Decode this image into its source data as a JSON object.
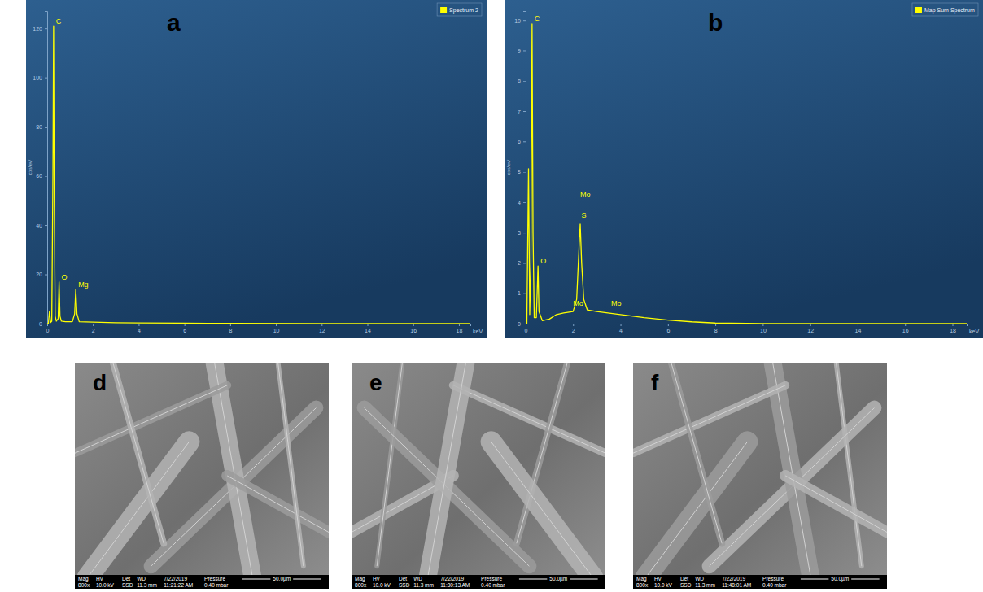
{
  "chart_data": [
    {
      "type": "line",
      "panel_label": "a",
      "x_label": "keV",
      "y_label": "cps/eV",
      "xlim": [
        0,
        18.5
      ],
      "xticks": [
        0,
        2,
        4,
        6,
        8,
        10,
        12,
        14,
        16,
        18
      ],
      "ylim": [
        0,
        127
      ],
      "yticks": [
        0,
        20,
        40,
        60,
        80,
        100,
        120
      ],
      "grid": false,
      "legend": "top-right",
      "x": [
        0,
        0.05,
        0.1,
        0.15,
        0.2,
        0.25,
        0.28,
        0.31,
        0.35,
        0.4,
        0.48,
        0.52,
        0.56,
        0.62,
        0.8,
        1.1,
        1.2,
        1.25,
        1.3,
        1.4,
        2,
        3,
        4,
        6,
        8,
        12,
        18.5
      ],
      "series": [
        {
          "name": "Spectrum 2",
          "color": "#ffff00",
          "values": [
            0,
            0,
            5,
            0.5,
            1,
            60,
            121,
            50,
            3,
            1,
            2,
            17,
            3,
            1,
            0.8,
            0.8,
            4,
            14,
            4,
            0.8,
            0.6,
            0.4,
            0.3,
            0.2,
            0.1,
            0.05,
            0
          ]
        }
      ],
      "annotations": [
        {
          "text": "C",
          "x": 0.28,
          "y": 121
        },
        {
          "text": "O",
          "x": 0.52,
          "y": 17
        },
        {
          "text": "Mg",
          "x": 1.25,
          "y": 14
        }
      ]
    },
    {
      "type": "line",
      "panel_label": "b",
      "x_label": "keV",
      "y_label": "cps/eV",
      "xlim": [
        0,
        18.6
      ],
      "xticks": [
        0,
        2,
        4,
        6,
        8,
        10,
        12,
        14,
        16,
        18
      ],
      "ylim": [
        0,
        10.3
      ],
      "yticks": [
        0,
        1,
        2,
        3,
        4,
        5,
        6,
        7,
        8,
        9,
        10
      ],
      "grid": false,
      "legend": "top-right",
      "x": [
        0,
        0.05,
        0.12,
        0.17,
        0.22,
        0.27,
        0.31,
        0.36,
        0.45,
        0.52,
        0.56,
        0.7,
        1.0,
        1.3,
        1.6,
        2.0,
        2.15,
        2.25,
        2.3,
        2.36,
        2.45,
        2.6,
        3,
        4,
        5,
        6,
        7,
        8,
        10,
        18.6
      ],
      "series": [
        {
          "name": "Map Sum Spectrum",
          "color": "#ffff00",
          "values": [
            0,
            0,
            5.1,
            0.3,
            2,
            9.9,
            3,
            0.2,
            0.2,
            1.9,
            0.4,
            0.1,
            0.15,
            0.3,
            0.35,
            0.4,
            0.8,
            2.5,
            3.3,
            2,
            0.8,
            0.45,
            0.4,
            0.3,
            0.2,
            0.12,
            0.06,
            0.02,
            0,
            0
          ]
        }
      ],
      "annotations": [
        {
          "text": "C",
          "x": 0.27,
          "y": 9.9
        },
        {
          "text": "O",
          "x": 0.52,
          "y": 1.9
        },
        {
          "text": "Mo",
          "x": 2.2,
          "y": 4.1
        },
        {
          "text": "S",
          "x": 2.25,
          "y": 3.4
        },
        {
          "text": "Mo",
          "x": 1.9,
          "y": 0.5
        },
        {
          "text": "Mo",
          "x": 3.5,
          "y": 0.5
        }
      ]
    }
  ],
  "images": [
    {
      "label": "d",
      "header": [
        "Mag",
        "HV",
        "Det",
        "WD",
        "7/22/2019",
        "Pressure"
      ],
      "values": [
        "800x",
        "10.0 kV",
        "SSD",
        "11.3 mm",
        "11:21:22 AM",
        "0.40 mbar"
      ],
      "scale_bar": "50.0µm"
    },
    {
      "label": "e",
      "header": [
        "Mag",
        "HV",
        "Det",
        "WD",
        "7/22/2019",
        "Pressure"
      ],
      "values": [
        "800x",
        "10.0 kV",
        "SSD",
        "11.3 mm",
        "11:30:13 AM",
        "0.40 mbar"
      ],
      "scale_bar": "50.0µm"
    },
    {
      "label": "f",
      "header": [
        "Mag",
        "HV",
        "Det",
        "WD",
        "7/22/2019",
        "Pressure"
      ],
      "values": [
        "800x",
        "10.0 kV",
        "SSD",
        "11.3 mm",
        "11:48:01 AM",
        "0.40 mbar"
      ],
      "scale_bar": "50.0µm"
    }
  ]
}
